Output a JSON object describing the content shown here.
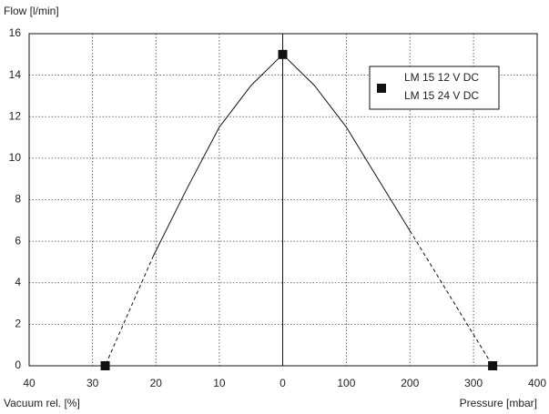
{
  "chart_data": {
    "type": "line",
    "y_title": "Flow [l/min]",
    "vacuum_title": "Vacuum rel. [%]",
    "pressure_title": "Pressure [mbar]",
    "ylim": [
      0,
      16
    ],
    "yticks": [
      0,
      2,
      4,
      6,
      8,
      10,
      12,
      14,
      16
    ],
    "vacuum_xlim": [
      40,
      0
    ],
    "vacuum_xticks": [
      40,
      30,
      20,
      10,
      0
    ],
    "pressure_xlim": [
      0,
      400
    ],
    "pressure_xticks": [
      100,
      200,
      300,
      400
    ],
    "grid": true,
    "legend": [
      "LM 15  12 V DC",
      "LM 15  24 V DC"
    ],
    "color": "#111111",
    "curves": [
      {
        "axis": "vacuum",
        "style": "solid",
        "x": [
          0,
          5,
          10,
          15,
          20.4
        ],
        "y": [
          15,
          13.5,
          11.5,
          8.6,
          5.3
        ]
      },
      {
        "axis": "vacuum",
        "style": "dashed",
        "x": [
          20.4,
          28
        ],
        "y": [
          5.3,
          0
        ]
      },
      {
        "axis": "pressure",
        "style": "solid",
        "x": [
          0,
          50,
          100,
          150,
          200
        ],
        "y": [
          15,
          13.5,
          11.5,
          9,
          6.5
        ]
      },
      {
        "axis": "pressure",
        "style": "dashed",
        "x": [
          200,
          330
        ],
        "y": [
          6.5,
          0
        ]
      }
    ],
    "markers": [
      {
        "axis": "vacuum",
        "x": 28,
        "y": 0
      },
      {
        "axis": "vacuum",
        "x": 0,
        "y": 15
      },
      {
        "axis": "pressure",
        "x": 330,
        "y": 0
      }
    ]
  }
}
